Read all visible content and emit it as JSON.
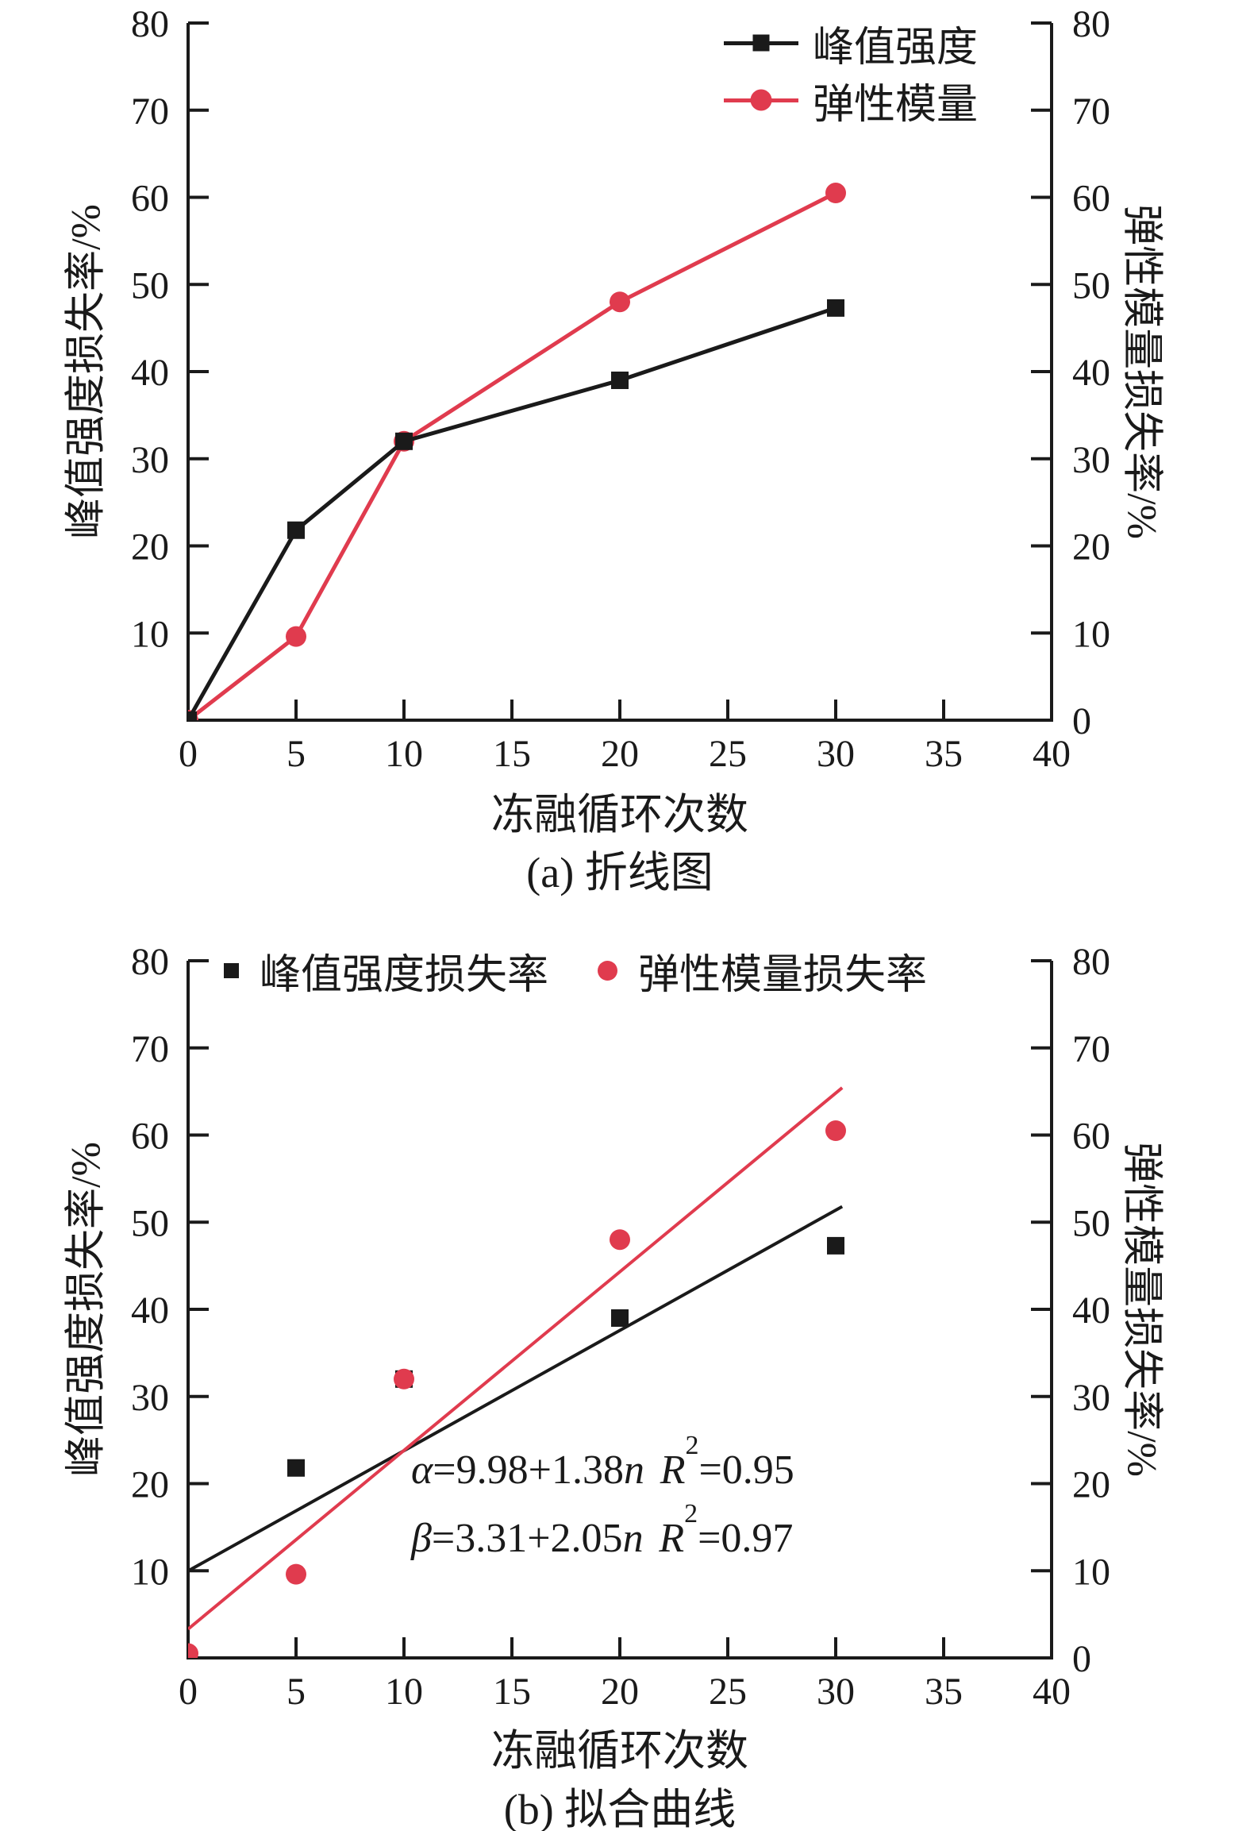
{
  "page": {
    "background": "#ffffff"
  },
  "colors": {
    "series_black": "#1a1a1a",
    "series_red": "#e03b4e",
    "axis": "#1a1a1a"
  },
  "chart_data": [
    {
      "id": "a",
      "type": "line",
      "caption": "(a) 折线图",
      "xlabel": "冻融循环次数",
      "ylabel_left": "峰值强度损失率/%",
      "ylabel_right": "弹性模量损失率/%",
      "xlim": [
        0,
        40
      ],
      "ylim": [
        0,
        80
      ],
      "xticks": [
        0,
        5,
        10,
        15,
        20,
        25,
        30,
        35,
        40
      ],
      "yticks_left": [
        10,
        20,
        30,
        40,
        50,
        60,
        70,
        80
      ],
      "yticks_right": [
        0,
        10,
        20,
        30,
        40,
        50,
        60,
        70,
        80
      ],
      "grid": false,
      "legend_position": "top-right-inside",
      "legend": {
        "items": [
          {
            "label": "峰值强度",
            "marker": "square",
            "color": "#1a1a1a",
            "with_line": true
          },
          {
            "label": "弹性模量",
            "marker": "circle",
            "color": "#e03b4e",
            "with_line": true
          }
        ]
      },
      "series": [
        {
          "name": "弹性模量",
          "color": "#e03b4e",
          "marker": "circle",
          "line": true,
          "points": [
            [
              0,
              0
            ],
            [
              5,
              9.6
            ],
            [
              10,
              32
            ],
            [
              20,
              48
            ],
            [
              30,
              60.5
            ]
          ]
        },
        {
          "name": "峰值强度",
          "color": "#1a1a1a",
          "marker": "square",
          "line": true,
          "points": [
            [
              0,
              0
            ],
            [
              5,
              21.8
            ],
            [
              10,
              32
            ],
            [
              20,
              39
            ],
            [
              30,
              47.3
            ]
          ]
        }
      ]
    },
    {
      "id": "b",
      "type": "scatter",
      "caption": "(b) 拟合曲线",
      "xlabel": "冻融循环次数",
      "ylabel_left": "峰值强度损失率/%",
      "ylabel_right": "弹性模量损失率/%",
      "xlim": [
        0,
        40
      ],
      "ylim": [
        0,
        80
      ],
      "xticks": [
        0,
        5,
        10,
        15,
        20,
        25,
        30,
        35,
        40
      ],
      "yticks_left": [
        10,
        20,
        30,
        40,
        50,
        60,
        70,
        80
      ],
      "yticks_right": [
        0,
        10,
        20,
        30,
        40,
        50,
        60,
        70,
        80
      ],
      "grid": false,
      "legend_position": "top-inside",
      "legend": {
        "items": [
          {
            "label": "峰值强度损失率",
            "marker": "square",
            "color": "#1a1a1a",
            "with_line": false
          },
          {
            "label": "弹性模量损失率",
            "marker": "circle",
            "color": "#e03b4e",
            "with_line": false
          }
        ]
      },
      "series": [
        {
          "name": "峰值强度损失率",
          "color": "#1a1a1a",
          "marker": "square",
          "line": false,
          "points": [
            [
              5,
              21.8
            ],
            [
              10,
              32
            ],
            [
              20,
              39
            ],
            [
              30,
              47.3
            ]
          ]
        },
        {
          "name": "弹性模量损失率",
          "color": "#e03b4e",
          "marker": "circle",
          "line": false,
          "points": [
            [
              0,
              0.5
            ],
            [
              5,
              9.6
            ],
            [
              10,
              32
            ],
            [
              20,
              48
            ],
            [
              30,
              60.5
            ]
          ]
        }
      ],
      "fits": [
        {
          "name": "峰值强度拟合",
          "color": "#1a1a1a",
          "intercept": 9.98,
          "slope": 1.38,
          "x_range": [
            0,
            30.3
          ]
        },
        {
          "name": "弹性模量拟合",
          "color": "#e03b4e",
          "intercept": 3.31,
          "slope": 2.05,
          "x_range": [
            0,
            30.3
          ]
        }
      ],
      "annotations": [
        {
          "head": "α",
          "mid": "=9.98+1.38",
          "var": "n",
          "R": "R",
          "sup": "2",
          "tail": "=0.95"
        },
        {
          "head": "β",
          "mid": "=3.31+2.05",
          "var": "n",
          "R": "R",
          "sup": "2",
          "tail": "=0.97"
        }
      ]
    }
  ]
}
